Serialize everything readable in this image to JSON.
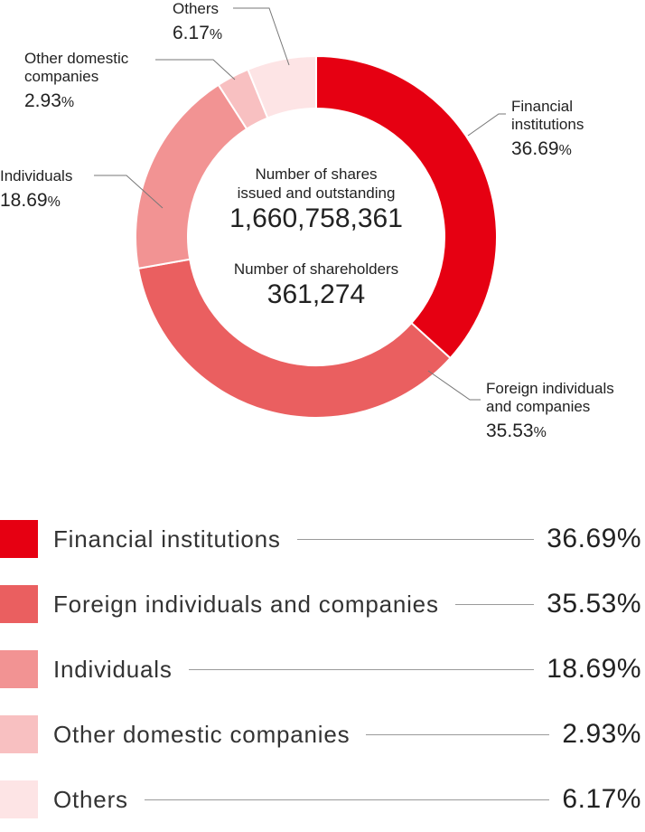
{
  "chart_data": {
    "type": "pie",
    "title": "",
    "categories": [
      "Financial institutions",
      "Foreign individuals and companies",
      "Individuals",
      "Other domestic companies",
      "Others"
    ],
    "values": [
      36.69,
      35.53,
      18.69,
      2.93,
      6.17
    ],
    "unit": "%",
    "colors": [
      "#e60012",
      "#ea5f60",
      "#f29393",
      "#f8c0c1",
      "#fde4e5"
    ],
    "legend_placement": "bottom"
  },
  "callouts": [
    {
      "label": "Financial\ninstitutions",
      "value": "36.69",
      "unit": "%"
    },
    {
      "label": "Foreign individuals\nand companies",
      "value": "35.53",
      "unit": "%"
    },
    {
      "label": "Individuals",
      "value": "18.69",
      "unit": "%"
    },
    {
      "label": "Other domestic\ncompanies",
      "value": "2.93",
      "unit": "%"
    },
    {
      "label": "Others",
      "value": "6.17",
      "unit": "%"
    }
  ],
  "center": {
    "shares_label": "Number of shares\nissued and outstanding",
    "shares_value": "1,660,758,361",
    "holders_label": "Number of shareholders",
    "holders_value": "361,274"
  },
  "legend": [
    {
      "label": "Financial institutions",
      "value": "36.69%"
    },
    {
      "label": "Foreign individuals and companies",
      "value": "35.53%"
    },
    {
      "label": "Individuals",
      "value": "18.69%"
    },
    {
      "label": "Other domestic companies",
      "value": "2.93%"
    },
    {
      "label": "Others",
      "value": "6.17%"
    }
  ]
}
